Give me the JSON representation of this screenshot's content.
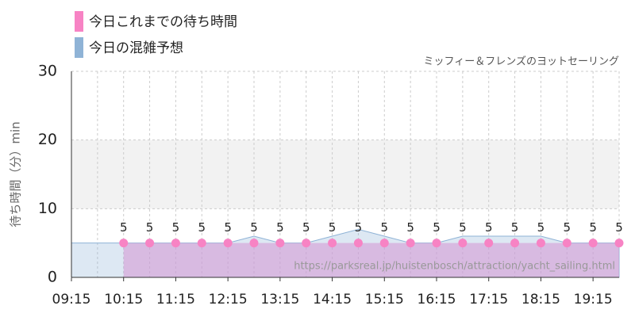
{
  "chart_data": {
    "type": "area",
    "subtitle": "ミッフィー＆フレンズのヨットセーリング",
    "y_label": "待ち時間（分）min",
    "watermark": "https://parksreal.jp/huistenbosch/attraction/yacht_sailing.html",
    "xlim": [
      "09:15",
      "19:45"
    ],
    "xticks": [
      "09:15",
      "10:15",
      "11:15",
      "12:15",
      "13:15",
      "14:15",
      "15:15",
      "16:15",
      "17:15",
      "18:15",
      "19:15"
    ],
    "ylim": [
      0,
      30
    ],
    "yticks": [
      0,
      10,
      20,
      30
    ],
    "shaded_band": [
      10,
      20
    ],
    "grid": true,
    "series": [
      {
        "name": "今日これまでの待ち時間",
        "color": "#f783c4",
        "x": [
          "10:15",
          "10:45",
          "11:15",
          "11:45",
          "12:15",
          "12:45",
          "13:15",
          "13:45",
          "14:15",
          "14:45",
          "15:15",
          "15:45",
          "16:15",
          "16:45",
          "17:15",
          "17:45",
          "18:15",
          "18:45",
          "19:15",
          "19:45"
        ],
        "values": [
          5,
          5,
          5,
          5,
          5,
          5,
          5,
          5,
          5,
          5,
          5,
          5,
          5,
          5,
          5,
          5,
          5,
          5,
          5,
          5
        ]
      },
      {
        "name": "今日の混雑予想",
        "color": "#8fb3d6",
        "x": [
          "09:15",
          "09:45",
          "10:15",
          "10:45",
          "11:15",
          "11:45",
          "12:15",
          "12:45",
          "13:15",
          "13:45",
          "14:15",
          "14:45",
          "15:15",
          "15:45",
          "16:15",
          "16:45",
          "17:15",
          "17:45",
          "18:15",
          "18:45",
          "19:15",
          "19:45"
        ],
        "values": [
          5,
          5,
          5,
          5,
          5,
          5,
          5,
          6,
          5,
          5,
          6,
          7,
          6,
          5,
          5,
          6,
          6,
          6,
          6,
          5,
          5,
          5
        ]
      }
    ]
  }
}
